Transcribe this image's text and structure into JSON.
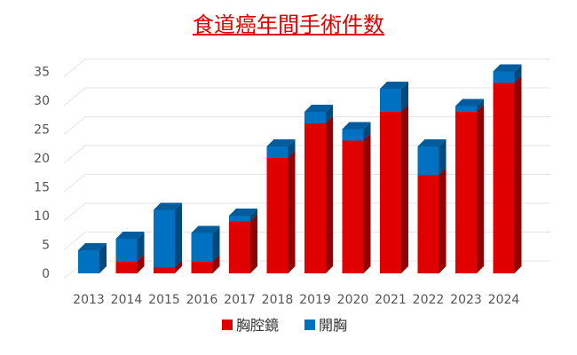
{
  "chart_data": {
    "type": "bar",
    "stacked": true,
    "title": "食道癌年間手術件数",
    "xlabel": "",
    "ylabel": "",
    "ylim": [
      0,
      35
    ],
    "y_ticks": [
      0,
      5,
      10,
      15,
      20,
      25,
      30,
      35
    ],
    "grid": true,
    "legend_position": "bottom",
    "categories": [
      "2013",
      "2014",
      "2015",
      "2016",
      "2017",
      "2018",
      "2019",
      "2020",
      "2021",
      "2022",
      "2023",
      "2024"
    ],
    "series": [
      {
        "name": "胸腔鏡",
        "color": "#e00000",
        "values": [
          0,
          2,
          1,
          2,
          9,
          20,
          26,
          23,
          28,
          17,
          28,
          33
        ]
      },
      {
        "name": "開胸",
        "color": "#0070c0",
        "values": [
          4,
          4,
          10,
          5,
          1,
          2,
          2,
          2,
          4,
          5,
          1,
          2
        ]
      }
    ]
  }
}
